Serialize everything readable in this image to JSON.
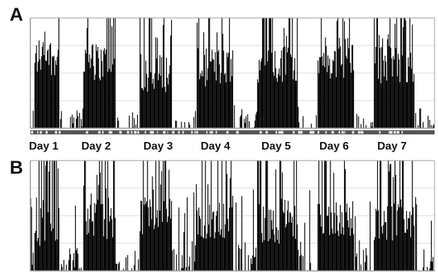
{
  "panels": [
    {
      "letter": "A",
      "chart_data": {
        "type": "bar",
        "title": "",
        "days": [
          "Day 1",
          "Day 2",
          "Day 3",
          "Day 4",
          "Day 5",
          "Day 6",
          "Day 7"
        ],
        "grid": true,
        "ylim": [
          0,
          1
        ],
        "activity_profile": [
          {
            "day": "Day 1",
            "active_level": 0.65,
            "rest_level": 0.1
          },
          {
            "day": "Day 2",
            "active_level": 0.6,
            "rest_level": 0.08
          },
          {
            "day": "Day 3",
            "active_level": 0.5,
            "rest_level": 0.1
          },
          {
            "day": "Day 4",
            "active_level": 0.55,
            "rest_level": 0.12
          },
          {
            "day": "Day 5",
            "active_level": 0.58,
            "rest_level": 0.12
          },
          {
            "day": "Day 6",
            "active_level": 0.6,
            "rest_level": 0.1
          },
          {
            "day": "Day 7",
            "active_level": 0.58,
            "rest_level": 0.12
          }
        ]
      }
    },
    {
      "letter": "B",
      "chart_data": {
        "type": "bar",
        "title": "",
        "days": [
          "Day 1",
          "Day 2",
          "Day 3",
          "Day 4",
          "Day 5",
          "Day 6",
          "Day 7"
        ],
        "grid": true,
        "ylim": [
          0,
          1
        ],
        "activity_profile": [
          {
            "day": "Day 1",
            "active_level": 0.4,
            "rest_level": 0.12
          },
          {
            "day": "Day 2",
            "active_level": 0.45,
            "rest_level": 0.12
          },
          {
            "day": "Day 3",
            "active_level": 0.5,
            "rest_level": 0.15
          },
          {
            "day": "Day 4",
            "active_level": 0.45,
            "rest_level": 0.15
          },
          {
            "day": "Day 5",
            "active_level": 0.42,
            "rest_level": 0.15
          },
          {
            "day": "Day 6",
            "active_level": 0.48,
            "rest_level": 0.12
          },
          {
            "day": "Day 7",
            "active_level": 0.45,
            "rest_level": 0.12
          }
        ]
      }
    }
  ],
  "colors": {
    "bars": "#000000",
    "grid": "#d8d8d8",
    "axis": "#9a9a9a",
    "rest_band": "#ffffff"
  }
}
